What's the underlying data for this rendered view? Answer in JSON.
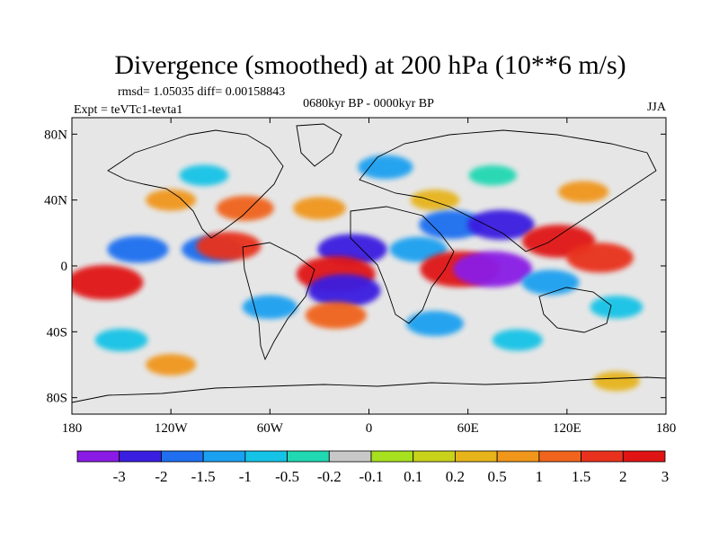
{
  "chart_data": {
    "type": "heatmap",
    "title": "Divergence (smoothed) at 200 hPa (10**6 m/s)",
    "stats_text": "rmsd= 1.05035 diff= 0.00158843",
    "experiment_label": "Expt = teVTc1-tevta1",
    "period_label": "0680kyr BP - 0000kyr BP",
    "season_label": "JJA",
    "x_ticks": [
      {
        "value": -180,
        "label": "180"
      },
      {
        "value": -120,
        "label": "120W"
      },
      {
        "value": -60,
        "label": "60W"
      },
      {
        "value": 0,
        "label": "0"
      },
      {
        "value": 60,
        "label": "60E"
      },
      {
        "value": 120,
        "label": "120E"
      },
      {
        "value": 180,
        "label": "180"
      }
    ],
    "y_ticks": [
      {
        "value": 80,
        "label": "80N"
      },
      {
        "value": 40,
        "label": "40N"
      },
      {
        "value": 0,
        "label": "0"
      },
      {
        "value": -40,
        "label": "40S"
      },
      {
        "value": -80,
        "label": "80S"
      }
    ],
    "xlim": [
      -180,
      180
    ],
    "ylim": [
      -90,
      90
    ],
    "colorbar_colors": [
      "#8a1be5",
      "#3a1fe0",
      "#1f6ff0",
      "#1aa0f0",
      "#14c3e6",
      "#20d8b2",
      "#c8c8c8",
      "#a6e01e",
      "#c8d21a",
      "#e6b41a",
      "#f0961a",
      "#f0641e",
      "#e8321e",
      "#e01414"
    ],
    "colorbar_labels": [
      "-3",
      "-2",
      "-1.5",
      "-1",
      "-0.5",
      "-0.2",
      "-0.1",
      "0.1",
      "0.2",
      "0.5",
      "1",
      "1.5",
      "2",
      "3"
    ],
    "field_features": [
      {
        "lon": -100,
        "lat": 55,
        "value": -0.5
      },
      {
        "lon": 10,
        "lat": 60,
        "value": -1
      },
      {
        "lon": 75,
        "lat": 55,
        "value": -0.4
      },
      {
        "lon": -120,
        "lat": 40,
        "value": 0.6
      },
      {
        "lon": -75,
        "lat": 35,
        "value": 1.2
      },
      {
        "lon": -30,
        "lat": 35,
        "value": 0.8
      },
      {
        "lon": 40,
        "lat": 40,
        "value": 0.5
      },
      {
        "lon": 130,
        "lat": 45,
        "value": 0.6
      },
      {
        "lon": -140,
        "lat": 10,
        "value": -1.5
      },
      {
        "lon": -95,
        "lat": 10,
        "value": -1.5
      },
      {
        "lon": -85,
        "lat": 12,
        "value": 1.8
      },
      {
        "lon": -10,
        "lat": 10,
        "value": -2.2
      },
      {
        "lon": 30,
        "lat": 10,
        "value": -1.2
      },
      {
        "lon": 50,
        "lat": 25,
        "value": -1.8
      },
      {
        "lon": 80,
        "lat": 25,
        "value": -2.0
      },
      {
        "lon": 115,
        "lat": 15,
        "value": 2.5
      },
      {
        "lon": 140,
        "lat": 5,
        "value": 2.0
      },
      {
        "lon": -160,
        "lat": -10,
        "value": 2.8
      },
      {
        "lon": -20,
        "lat": -5,
        "value": 3.2
      },
      {
        "lon": 55,
        "lat": -2,
        "value": 3.0
      },
      {
        "lon": 75,
        "lat": -2,
        "value": -3.0
      },
      {
        "lon": -15,
        "lat": -15,
        "value": -2.5
      },
      {
        "lon": 110,
        "lat": -10,
        "value": -1.2
      },
      {
        "lon": -60,
        "lat": -25,
        "value": -1.0
      },
      {
        "lon": -20,
        "lat": -30,
        "value": 1.5
      },
      {
        "lon": 40,
        "lat": -35,
        "value": -1.2
      },
      {
        "lon": 150,
        "lat": -25,
        "value": -0.8
      },
      {
        "lon": -150,
        "lat": -45,
        "value": -0.8
      },
      {
        "lon": 90,
        "lat": -45,
        "value": -0.6
      },
      {
        "lon": -120,
        "lat": -60,
        "value": 0.6
      },
      {
        "lon": 150,
        "lat": -70,
        "value": 0.3
      }
    ]
  }
}
